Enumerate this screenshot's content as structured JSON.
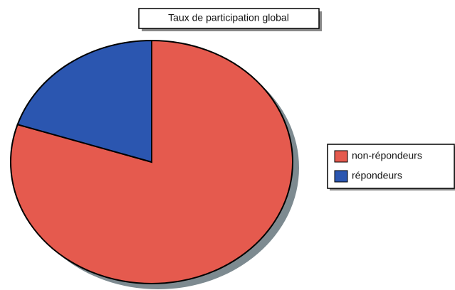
{
  "chart_data": {
    "type": "pie",
    "title": "Taux de participation global",
    "categories": [
      "non-répondeurs",
      "répondeurs"
    ],
    "values": [
      80,
      20
    ],
    "colors": [
      "#e55a4e",
      "#2b56b0"
    ],
    "legend": "right"
  }
}
